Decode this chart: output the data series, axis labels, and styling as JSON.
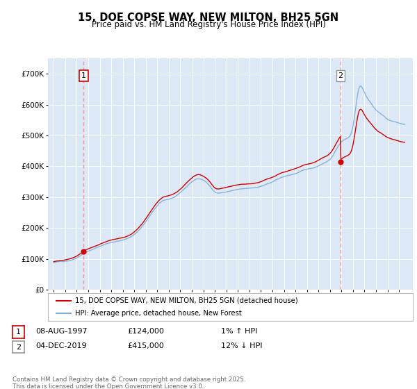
{
  "title": "15, DOE COPSE WAY, NEW MILTON, BH25 5GN",
  "subtitle": "Price paid vs. HM Land Registry's House Price Index (HPI)",
  "legend_line1": "15, DOE COPSE WAY, NEW MILTON, BH25 5GN (detached house)",
  "legend_line2": "HPI: Average price, detached house, New Forest",
  "annotation1_date": "08-AUG-1997",
  "annotation1_price": "£124,000",
  "annotation1_hpi": "1% ↑ HPI",
  "annotation2_date": "04-DEC-2019",
  "annotation2_price": "£415,000",
  "annotation2_hpi": "12% ↓ HPI",
  "footer": "Contains HM Land Registry data © Crown copyright and database right 2025.\nThis data is licensed under the Open Government Licence v3.0.",
  "sale1_year": 1997.6,
  "sale1_value": 124000,
  "sale2_year": 2019.92,
  "sale2_value": 415000,
  "hpi_color": "#7eadd4",
  "price_color": "#cc0000",
  "point_color": "#cc0000",
  "dashed_color": "#ff8888",
  "background_plot": "#dce8f5",
  "background_fig": "#ffffff",
  "ylim_min": 0,
  "ylim_max": 750000,
  "xlim_min": 1994.5,
  "xlim_max": 2026.2
}
